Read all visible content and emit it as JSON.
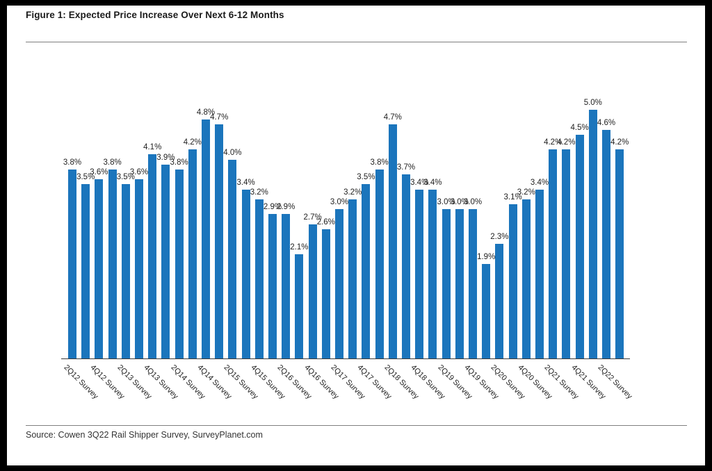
{
  "figure": {
    "title": "Figure 1: Expected Price Increase Over Next 6-12 Months",
    "source": "Source: Cowen 3Q22 Rail Shipper Survey, SurveyPlanet.com"
  },
  "chart_data": {
    "type": "bar",
    "title": "Figure 1: Expected Price Increase Over Next 6-12 Months",
    "values": [
      3.8,
      3.5,
      3.6,
      3.8,
      3.5,
      3.6,
      4.1,
      3.9,
      3.8,
      4.2,
      4.8,
      4.7,
      4.0,
      3.4,
      3.2,
      2.9,
      2.9,
      2.1,
      2.7,
      2.6,
      3.0,
      3.2,
      3.5,
      3.8,
      4.7,
      3.7,
      3.4,
      3.4,
      3.0,
      3.0,
      3.0,
      1.9,
      2.3,
      3.1,
      3.2,
      3.4,
      4.2,
      4.2,
      4.5,
      5.0,
      4.6,
      4.2
    ],
    "data_label_format": "percent-one-decimal",
    "x_tick_labels": [
      "2Q12 Survey",
      "4Q12 Survey",
      "2Q13 Survey",
      "4Q13 Survey",
      "2Q14 Survey",
      "4Q14 Survey",
      "2Q15 Survey",
      "4Q15 Survey",
      "2Q16 Survey",
      "4Q16 Survey",
      "2Q17 Survey",
      "4Q17 Survey",
      "2Q18 Survey",
      "4Q18 Survey",
      "2Q19 Survey",
      "4Q19 Survey",
      "2Q20 Survey",
      "4Q20 Survey",
      "2Q21 Survey",
      "4Q21 Survey",
      "2Q22 Survey"
    ],
    "x_tick_every_n_bars": 2,
    "ylim": [
      0,
      5.0
    ],
    "grid": "off",
    "legend": "none",
    "colors": {
      "bar": "#1b75bc",
      "label_text": "#1f1f1f",
      "axis_line": "#3a3a3a",
      "rule_line": "#7f7f7f"
    },
    "xlabel": "",
    "ylabel": ""
  }
}
